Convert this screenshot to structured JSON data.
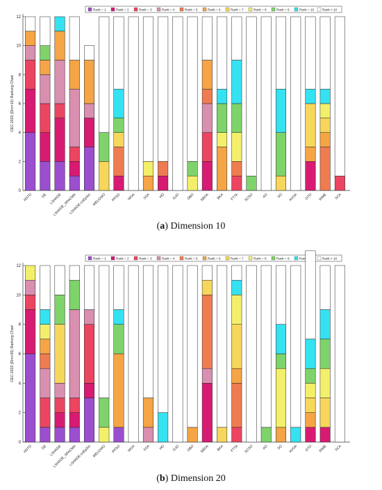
{
  "figure": {
    "panels": [
      {
        "letter": "a",
        "caption": "Dimension 10"
      },
      {
        "letter": "b",
        "caption": "Dimension 20"
      }
    ]
  },
  "chart_data": [
    {
      "type": "bar",
      "stacked": true,
      "title": "",
      "xlabel": "",
      "ylabel": "CEC-2022 (Dim=10) Ranking Chart",
      "ylim": [
        0,
        12
      ],
      "yticks": [
        0,
        2,
        4,
        6,
        8,
        10,
        12
      ],
      "grid": false,
      "legend_position": "top",
      "categories": [
        "HSTO",
        "DE",
        "LSHADE",
        "LSHADE_SPACMA",
        "LSHADE-cnEpSin",
        "MELGWO",
        "PPSO",
        "WOA",
        "SSA",
        "HO",
        "GJO",
        "DBO",
        "SBOA",
        "BKA",
        "FTTA",
        "SCSO",
        "AO",
        "SO",
        "AVOA",
        "GTO",
        "RIME",
        "SCA"
      ],
      "legend": [
        "Rank = 1",
        "Rank = 2",
        "Rank = 3",
        "Rank = 4",
        "Rank = 5",
        "Rank = 6",
        "Rank = 7",
        "Rank = 8",
        "Rank = 9",
        "Rank = 10",
        "Rank > 10"
      ],
      "colors": [
        "#9b4fcf",
        "#d81b72",
        "#ec4561",
        "#d98fb0",
        "#ef7c50",
        "#f5a545",
        "#f7d65c",
        "#f3ef6a",
        "#7fd36b",
        "#35e2f2",
        "#ffffff"
      ],
      "series": [
        {
          "name": "Rank = 1",
          "values": [
            4,
            2,
            2,
            1,
            3,
            0,
            0,
            0,
            0,
            0,
            0,
            0,
            0,
            0,
            0,
            0,
            0,
            0,
            0,
            0,
            0,
            0
          ]
        },
        {
          "name": "Rank = 2",
          "values": [
            3,
            2,
            3,
            1,
            2,
            0,
            1,
            0,
            0,
            1,
            0,
            0,
            2,
            0,
            0,
            0,
            0,
            0,
            0,
            2,
            0,
            0
          ]
        },
        {
          "name": "Rank = 3",
          "values": [
            2,
            2,
            1,
            1,
            0,
            0,
            0,
            0,
            0,
            0,
            0,
            0,
            2,
            0,
            1,
            0,
            0,
            0,
            0,
            0,
            0,
            1
          ]
        },
        {
          "name": "Rank = 4",
          "values": [
            1,
            2,
            3,
            4,
            1,
            0,
            0,
            0,
            0,
            0,
            0,
            0,
            2,
            0,
            0,
            0,
            0,
            0,
            0,
            0,
            0,
            0
          ]
        },
        {
          "name": "Rank = 5",
          "values": [
            0,
            0,
            0,
            0,
            0,
            0,
            2,
            0,
            0,
            1,
            0,
            0,
            1,
            0,
            1,
            0,
            0,
            0,
            0,
            0,
            3,
            0
          ]
        },
        {
          "name": "Rank = 6",
          "values": [
            1,
            1,
            2,
            2,
            3,
            0,
            0,
            0,
            1,
            0,
            0,
            0,
            2,
            3,
            0,
            0,
            0,
            0,
            0,
            1,
            1,
            0
          ]
        },
        {
          "name": "Rank = 7",
          "values": [
            0,
            0,
            0,
            0,
            0,
            2,
            1,
            0,
            0,
            0,
            0,
            0,
            0,
            0,
            0,
            0,
            0,
            1,
            0,
            3,
            1,
            0
          ]
        },
        {
          "name": "Rank = 8",
          "values": [
            0,
            0,
            0,
            0,
            0,
            0,
            0,
            0,
            1,
            0,
            0,
            1,
            0,
            1,
            2,
            0,
            0,
            0,
            0,
            0,
            1,
            0
          ]
        },
        {
          "name": "Rank = 9",
          "values": [
            0,
            1,
            0,
            0,
            0,
            2,
            1,
            0,
            0,
            0,
            0,
            1,
            0,
            2,
            2,
            1,
            0,
            3,
            0,
            0,
            0,
            0
          ]
        },
        {
          "name": "Rank = 10",
          "values": [
            0,
            0,
            1,
            0,
            0,
            0,
            2,
            0,
            0,
            0,
            0,
            0,
            0,
            1,
            3,
            0,
            0,
            3,
            0,
            1,
            1,
            0
          ]
        },
        {
          "name": "Rank > 10",
          "values": [
            1,
            2,
            0,
            3,
            1,
            8,
            5,
            12,
            10,
            10,
            12,
            10,
            3,
            5,
            3,
            11,
            12,
            5,
            12,
            5,
            5,
            11
          ]
        }
      ]
    },
    {
      "type": "bar",
      "stacked": true,
      "title": "",
      "xlabel": "",
      "ylabel": "CEC-2022 (Dim=20) Ranking Chart",
      "ylim": [
        0,
        12
      ],
      "yticks": [
        0,
        2,
        4,
        6,
        8,
        10,
        12
      ],
      "grid": false,
      "legend_position": "top",
      "categories": [
        "HSTO",
        "DE",
        "LSHADE",
        "LSHADE_SPACMA",
        "LSHADE-cnEpSin",
        "MELGWO",
        "PPSO",
        "WOA",
        "SSA",
        "HO",
        "GJO",
        "DBO",
        "SBOA",
        "BKA",
        "FTTA",
        "SCSO",
        "AO",
        "SO",
        "AVOA",
        "GTO",
        "RIME",
        "SCA"
      ],
      "legend": [
        "Rank = 1",
        "Rank = 2",
        "Rank = 3",
        "Rank = 4",
        "Rank = 5",
        "Rank = 6",
        "Rank = 7",
        "Rank = 8",
        "Rank = 9",
        "Rank = 10",
        "Rank > 10"
      ],
      "colors": [
        "#9b4fcf",
        "#d81b72",
        "#ec4561",
        "#d98fb0",
        "#ef7c50",
        "#f5a545",
        "#f7d65c",
        "#f3ef6a",
        "#7fd36b",
        "#35e2f2",
        "#ffffff"
      ],
      "series": [
        {
          "name": "Rank = 1",
          "values": [
            6,
            1,
            1,
            1,
            3,
            0,
            1,
            0,
            0,
            0,
            0,
            0,
            0,
            0,
            0,
            0,
            0,
            0,
            0,
            0,
            0,
            0
          ]
        },
        {
          "name": "Rank = 2",
          "values": [
            3,
            0,
            1,
            1,
            1,
            0,
            0,
            0,
            0,
            0,
            0,
            0,
            4,
            0,
            0,
            0,
            0,
            0,
            0,
            1,
            1,
            0
          ]
        },
        {
          "name": "Rank = 3",
          "values": [
            1,
            2,
            1,
            1,
            4,
            0,
            0,
            0,
            0,
            0,
            0,
            0,
            0,
            0,
            1,
            0,
            0,
            0,
            0,
            0,
            0,
            0
          ]
        },
        {
          "name": "Rank = 4",
          "values": [
            1,
            2,
            1,
            6,
            1,
            0,
            0,
            0,
            1,
            0,
            0,
            0,
            1,
            0,
            0,
            0,
            0,
            0,
            0,
            0,
            0,
            0
          ]
        },
        {
          "name": "Rank = 5",
          "values": [
            0,
            1,
            0,
            0,
            0,
            0,
            0,
            0,
            0,
            0,
            0,
            0,
            5,
            0,
            3,
            0,
            0,
            0,
            0,
            0,
            0,
            0
          ]
        },
        {
          "name": "Rank = 6",
          "values": [
            0,
            1,
            0,
            0,
            0,
            0,
            5,
            0,
            2,
            0,
            0,
            1,
            0,
            0,
            1,
            0,
            0,
            1,
            0,
            1,
            0,
            0
          ]
        },
        {
          "name": "Rank = 7",
          "values": [
            0,
            0,
            4,
            0,
            0,
            0,
            0,
            0,
            0,
            0,
            0,
            0,
            1,
            1,
            3,
            0,
            0,
            0,
            0,
            1,
            2,
            0
          ]
        },
        {
          "name": "Rank = 8",
          "values": [
            1,
            1,
            0,
            0,
            0,
            1,
            0,
            0,
            0,
            0,
            0,
            0,
            0,
            0,
            2,
            0,
            0,
            4,
            0,
            1,
            2,
            0
          ]
        },
        {
          "name": "Rank = 9",
          "values": [
            0,
            0,
            2,
            2,
            0,
            2,
            2,
            0,
            0,
            0,
            0,
            0,
            0,
            0,
            0,
            0,
            1,
            1,
            0,
            1,
            2,
            0
          ]
        },
        {
          "name": "Rank = 10",
          "values": [
            0,
            1,
            0,
            0,
            0,
            0,
            1,
            0,
            0,
            2,
            0,
            0,
            0,
            0,
            1,
            0,
            0,
            2,
            1,
            2,
            2,
            0
          ]
        },
        {
          "name": "Rank > 10",
          "values": [
            0,
            3,
            2,
            1,
            3,
            9,
            3,
            12,
            9,
            10,
            12,
            11,
            1,
            11,
            1,
            12,
            11,
            4,
            11,
            6,
            3,
            12
          ]
        }
      ]
    }
  ]
}
